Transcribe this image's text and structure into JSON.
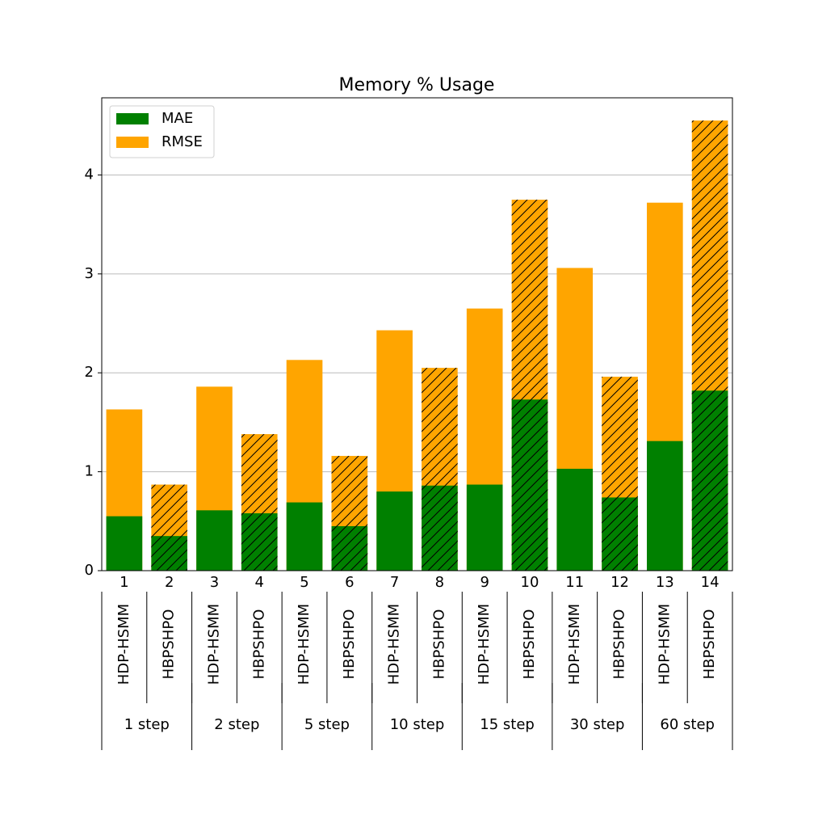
{
  "chart_data": {
    "type": "bar",
    "title": "Memory % Usage",
    "categories": [
      "1",
      "2",
      "3",
      "4",
      "5",
      "6",
      "7",
      "8",
      "9",
      "10",
      "11",
      "12",
      "13",
      "14"
    ],
    "models": [
      "HDP-HSMM",
      "HBPSHPO",
      "HDP-HSMM",
      "HBPSHPO",
      "HDP-HSMM",
      "HBPSHPO",
      "HDP-HSMM",
      "HBPSHPO",
      "HDP-HSMM",
      "HBPSHPO",
      "HDP-HSMM",
      "HBPSHPO",
      "HDP-HSMM",
      "HBPSHPO"
    ],
    "groups": [
      "1 step",
      "2 step",
      "5 step",
      "10 step",
      "15 step",
      "30 step",
      "60 step"
    ],
    "hatch": [
      false,
      true,
      false,
      true,
      false,
      true,
      false,
      true,
      false,
      true,
      false,
      true,
      false,
      true
    ],
    "series": [
      {
        "name": "MAE",
        "color": "#008000",
        "values": [
          0.55,
          0.35,
          0.61,
          0.58,
          0.69,
          0.45,
          0.8,
          0.86,
          0.87,
          1.73,
          1.03,
          0.74,
          1.31,
          1.82
        ]
      },
      {
        "name": "RMSE",
        "color": "#ffa500",
        "values": [
          1.63,
          0.87,
          1.86,
          1.38,
          2.13,
          1.16,
          2.43,
          2.05,
          2.65,
          3.75,
          3.06,
          1.96,
          3.72,
          4.55
        ]
      }
    ],
    "ylim": [
      0,
      4.78
    ],
    "yticks": [
      0,
      1,
      2,
      3,
      4
    ],
    "grid": true,
    "legend": "upper left"
  }
}
